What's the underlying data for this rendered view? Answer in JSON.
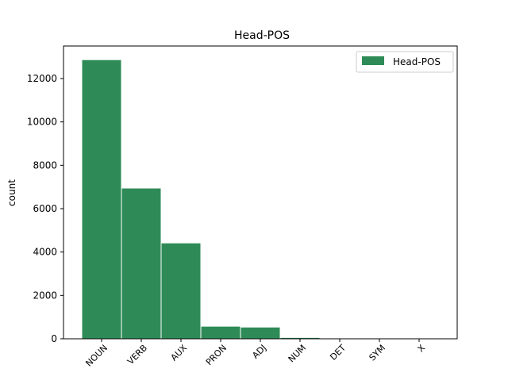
{
  "chart_data": {
    "type": "bar",
    "title": "Head-POS",
    "xlabel": "",
    "ylabel": "count",
    "categories": [
      "NOUN",
      "VERB",
      "AUX",
      "PRON",
      "ADJ",
      "NUM",
      "DET",
      "SYM",
      "X"
    ],
    "series": [
      {
        "name": "Head-POS",
        "values": [
          12870,
          6950,
          4420,
          580,
          540,
          60,
          15,
          8,
          5
        ],
        "color": "#2e8b57"
      }
    ],
    "ylim": [
      0,
      13500
    ],
    "yticks": [
      0,
      2000,
      4000,
      6000,
      8000,
      10000,
      12000
    ],
    "grid": false,
    "legend_position": "top-right"
  }
}
